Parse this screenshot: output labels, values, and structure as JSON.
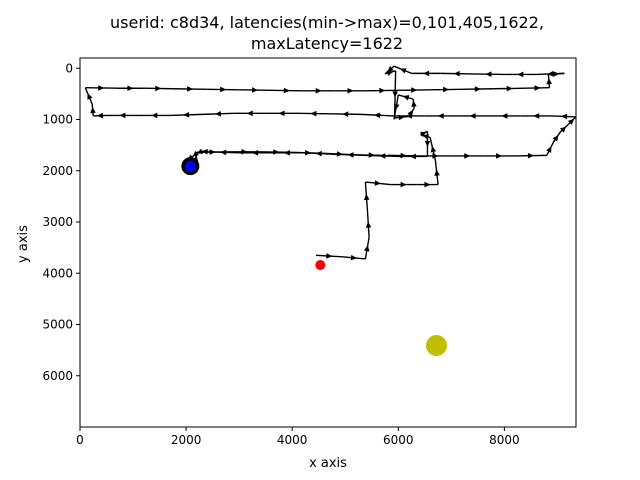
{
  "chart_data": {
    "type": "line",
    "title": "userid: c8d34, latencies(min->max)=0,101,405,1622,",
    "subtitle": "maxLatency=1622",
    "xlabel": "x axis",
    "ylabel": "y axis",
    "xlim": [
      0,
      9350
    ],
    "ylim": [
      7000,
      -200
    ],
    "y_inverted": true,
    "xticks": [
      0,
      2000,
      4000,
      6000,
      8000
    ],
    "yticks": [
      0,
      1000,
      2000,
      3000,
      4000,
      5000,
      6000
    ],
    "grid": false,
    "path_color": "#000000",
    "path": [
      [
        4450,
        3650
      ],
      [
        4950,
        3680
      ],
      [
        5380,
        3720
      ],
      [
        5450,
        3300
      ],
      [
        5420,
        2800
      ],
      [
        5380,
        2220
      ],
      [
        5850,
        2270
      ],
      [
        6350,
        2270
      ],
      [
        6750,
        2270
      ],
      [
        6700,
        1800
      ],
      [
        6600,
        1350
      ],
      [
        6420,
        1300
      ],
      [
        6550,
        1230
      ],
      [
        6550,
        1720
      ],
      [
        6000,
        1720
      ],
      [
        5400,
        1700
      ],
      [
        4800,
        1680
      ],
      [
        4200,
        1650
      ],
      [
        3600,
        1650
      ],
      [
        3000,
        1650
      ],
      [
        2400,
        1630
      ],
      [
        2300,
        1620
      ],
      [
        2200,
        1660
      ],
      [
        2130,
        1720
      ],
      [
        2000,
        1800
      ],
      [
        2170,
        1870
      ],
      [
        2200,
        1640
      ],
      [
        2800,
        1630
      ],
      [
        3400,
        1630
      ],
      [
        4000,
        1640
      ],
      [
        4600,
        1660
      ],
      [
        5200,
        1690
      ],
      [
        5800,
        1700
      ],
      [
        6400,
        1710
      ],
      [
        7000,
        1710
      ],
      [
        7600,
        1710
      ],
      [
        8200,
        1710
      ],
      [
        8800,
        1700
      ],
      [
        8920,
        1450
      ],
      [
        9050,
        1250
      ],
      [
        9200,
        1100
      ],
      [
        9350,
        950
      ],
      [
        8900,
        930
      ],
      [
        8300,
        930
      ],
      [
        7700,
        930
      ],
      [
        7100,
        930
      ],
      [
        6500,
        930
      ],
      [
        5900,
        930
      ],
      [
        5300,
        900
      ],
      [
        4700,
        890
      ],
      [
        4100,
        880
      ],
      [
        3500,
        880
      ],
      [
        2900,
        880
      ],
      [
        2300,
        900
      ],
      [
        1700,
        920
      ],
      [
        1100,
        920
      ],
      [
        500,
        920
      ],
      [
        250,
        930
      ],
      [
        230,
        700
      ],
      [
        100,
        380
      ],
      [
        700,
        390
      ],
      [
        1200,
        390
      ],
      [
        1750,
        400
      ],
      [
        2400,
        410
      ],
      [
        3000,
        420
      ],
      [
        3600,
        430
      ],
      [
        4200,
        440
      ],
      [
        4800,
        440
      ],
      [
        5400,
        440
      ],
      [
        6000,
        430
      ],
      [
        6600,
        420
      ],
      [
        7200,
        410
      ],
      [
        7800,
        400
      ],
      [
        8400,
        390
      ],
      [
        8850,
        380
      ],
      [
        8830,
        120
      ],
      [
        9130,
        100
      ],
      [
        8600,
        120
      ],
      [
        8000,
        120
      ],
      [
        7400,
        110
      ],
      [
        6800,
        100
      ],
      [
        6250,
        100
      ],
      [
        5920,
        -40
      ],
      [
        5750,
        110
      ],
      [
        5950,
        50
      ],
      [
        5930,
        970
      ],
      [
        6200,
        940
      ],
      [
        6300,
        780
      ],
      [
        6280,
        600
      ],
      [
        6000,
        520
      ],
      [
        5920,
        1000
      ]
    ],
    "start_marker": {
      "x": 2080,
      "y": 1910,
      "color": "#0000ff",
      "outline": "#000000"
    },
    "end_marker": {
      "x": 4530,
      "y": 3840,
      "color": "#ff0000"
    },
    "target_marker": {
      "x": 6720,
      "y": 5410,
      "color": "#bfbf00"
    }
  }
}
